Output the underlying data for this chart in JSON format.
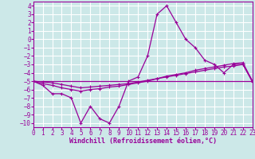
{
  "background_color": "#cce8e8",
  "grid_color": "#ffffff",
  "line_color": "#990099",
  "xlabel": "Windchill (Refroidissement éolien,°C)",
  "xlim": [
    0,
    23
  ],
  "ylim": [
    -10.5,
    4.5
  ],
  "xticks": [
    0,
    1,
    2,
    3,
    4,
    5,
    6,
    7,
    8,
    9,
    10,
    11,
    12,
    13,
    14,
    15,
    16,
    17,
    18,
    19,
    20,
    21,
    22,
    23
  ],
  "yticks": [
    4,
    3,
    2,
    1,
    0,
    -1,
    -2,
    -3,
    -4,
    -5,
    -6,
    -7,
    -8,
    -9,
    -10
  ],
  "series1_x": [
    0,
    1,
    2,
    3,
    4,
    5,
    6,
    7,
    8,
    9,
    10,
    11,
    12,
    13,
    14,
    15,
    16,
    17,
    18,
    19,
    20,
    21,
    22,
    23
  ],
  "series1_y": [
    -5,
    -5.5,
    -6.5,
    -6.5,
    -7,
    -10,
    -8,
    -9.5,
    -10,
    -8,
    -5,
    -4.5,
    -2,
    3,
    4,
    2,
    0,
    -1,
    -2.5,
    -3,
    -4,
    -3,
    -3,
    -5
  ],
  "series2_x": [
    0,
    1,
    2,
    3,
    4,
    5,
    6,
    7,
    8,
    9,
    10,
    11,
    12,
    13,
    14,
    15,
    16,
    17,
    18,
    19,
    20,
    21,
    22,
    23
  ],
  "series2_y": [
    -5,
    -5.3,
    -5.5,
    -5.8,
    -6.0,
    -6.2,
    -6.0,
    -5.9,
    -5.7,
    -5.6,
    -5.4,
    -5.2,
    -5.0,
    -4.7,
    -4.4,
    -4.2,
    -4.0,
    -3.7,
    -3.5,
    -3.3,
    -3.1,
    -2.9,
    -2.8,
    -5.0
  ],
  "series3_x": [
    0,
    1,
    2,
    3,
    4,
    5,
    6,
    7,
    8,
    9,
    10,
    11,
    12,
    13,
    14,
    15,
    16,
    17,
    18,
    19,
    20,
    21,
    22,
    23
  ],
  "series3_y": [
    -5,
    -5.1,
    -5.2,
    -5.4,
    -5.6,
    -5.8,
    -5.7,
    -5.6,
    -5.5,
    -5.4,
    -5.3,
    -5.1,
    -4.9,
    -4.7,
    -4.5,
    -4.3,
    -4.1,
    -3.9,
    -3.7,
    -3.5,
    -3.3,
    -3.2,
    -3.0,
    -5.1
  ],
  "series4_x": [
    0,
    23
  ],
  "series4_y": [
    -5,
    -5
  ]
}
